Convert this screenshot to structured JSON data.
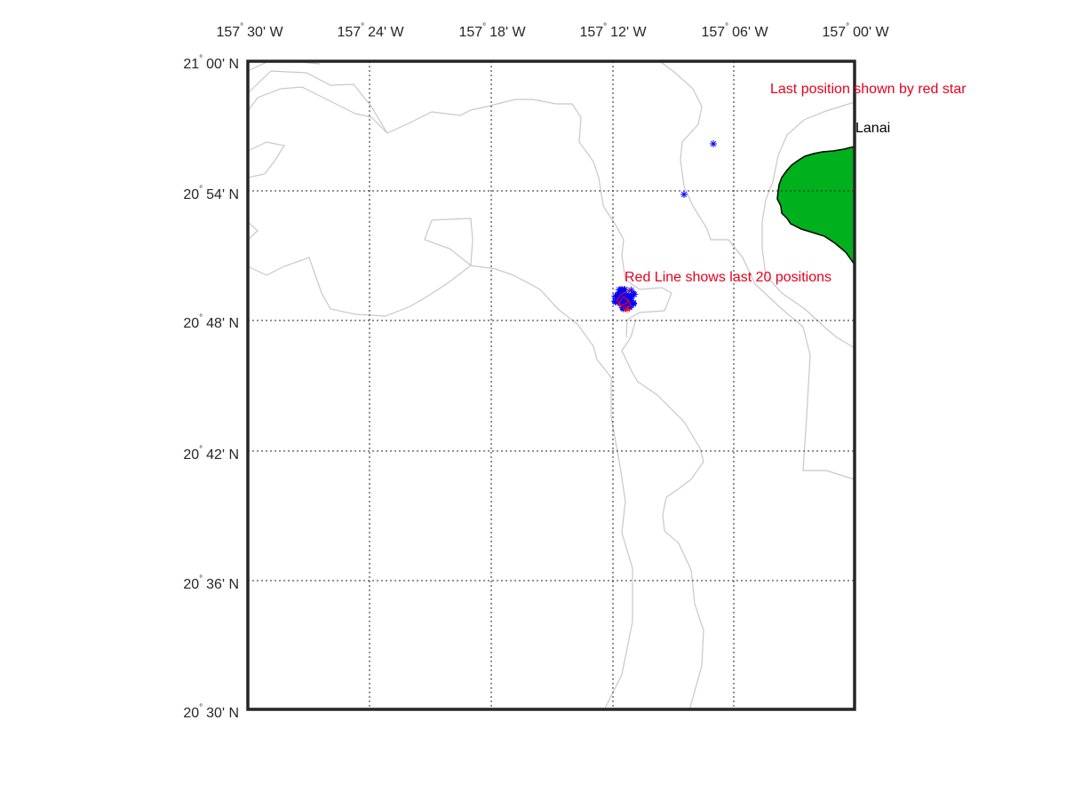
{
  "map": {
    "lon_ticks": [
      {
        "deg": "157",
        "min": "30' W"
      },
      {
        "deg": "157",
        "min": "24' W"
      },
      {
        "deg": "157",
        "min": "18' W"
      },
      {
        "deg": "157",
        "min": "12' W"
      },
      {
        "deg": "157",
        "min": "06' W"
      },
      {
        "deg": "157",
        "min": "00' W"
      }
    ],
    "lat_ticks": [
      {
        "deg": "21",
        "min": "00' N"
      },
      {
        "deg": "20",
        "min": "54' N"
      },
      {
        "deg": "20",
        "min": "48' N"
      },
      {
        "deg": "20",
        "min": "42' N"
      },
      {
        "deg": "20",
        "min": "36' N"
      },
      {
        "deg": "20",
        "min": "30' N"
      }
    ],
    "degree_symbol": "°",
    "annotations": {
      "last_position": "Last position shown by red star",
      "red_line": "Red Line shows last 20 positions",
      "island": "Lanai"
    },
    "colors": {
      "land": "#00b01d",
      "contour": "#c8c8c8",
      "track": "#0000ff",
      "recent_track": "#ff0000",
      "annotation": "#e8001c",
      "frame": "#262626"
    }
  }
}
